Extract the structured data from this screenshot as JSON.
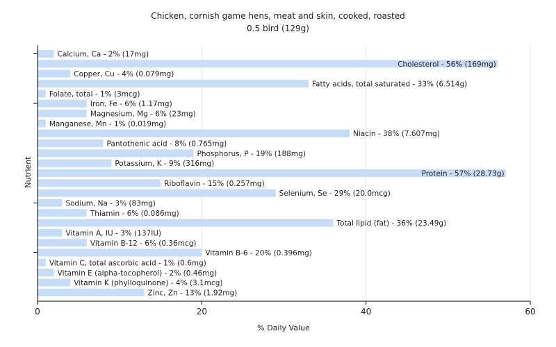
{
  "chart_data": {
    "type": "bar",
    "orientation": "horizontal",
    "title": "Chicken, cornish game hens, meat and skin, cooked, roasted",
    "subtitle": "0.5 bird (129g)",
    "xlabel": "% Daily Value",
    "ylabel": "Nutrient",
    "xlim": [
      0,
      60
    ],
    "xticks": [
      0,
      20,
      40,
      60
    ],
    "grid": true,
    "bar_color": "#c7dcf6",
    "series": [
      {
        "categories": [
          "Calcium, Ca",
          "Cholesterol",
          "Copper, Cu",
          "Fatty acids, total saturated",
          "Folate, total",
          "Iron, Fe",
          "Magnesium, Mg",
          "Manganese, Mn",
          "Niacin",
          "Pantothenic acid",
          "Phosphorus, P",
          "Potassium, K",
          "Protein",
          "Riboflavin",
          "Selenium, Se",
          "Sodium, Na",
          "Thiamin",
          "Total lipid (fat)",
          "Vitamin A, IU",
          "Vitamin B-12",
          "Vitamin B-6",
          "Vitamin C, total ascorbic acid",
          "Vitamin E (alpha-tocopherol)",
          "Vitamin K (phylloquinone)",
          "Zinc, Zn"
        ],
        "values": [
          2,
          56,
          4,
          33,
          1,
          6,
          6,
          1,
          38,
          8,
          19,
          9,
          57,
          15,
          29,
          3,
          6,
          36,
          3,
          6,
          20,
          1,
          2,
          4,
          13
        ],
        "labels": [
          "Calcium, Ca - 2% (17mg)",
          "Cholesterol - 56% (169mg)",
          "Copper, Cu - 4% (0.079mg)",
          "Fatty acids, total saturated - 33% (6.514g)",
          "Folate, total - 1% (3mcg)",
          "Iron, Fe - 6% (1.17mg)",
          "Magnesium, Mg - 6% (23mg)",
          "Manganese, Mn - 1% (0.019mg)",
          "Niacin - 38% (7.607mg)",
          "Pantothenic acid - 8% (0.765mg)",
          "Phosphorus, P - 19% (188mg)",
          "Potassium, K - 9% (316mg)",
          "Protein - 57% (28.73g)",
          "Riboflavin - 15% (0.257mg)",
          "Selenium, Se - 29% (20.0mcg)",
          "Sodium, Na - 3% (83mg)",
          "Thiamin - 6% (0.086mg)",
          "Total lipid (fat) - 36% (23.49g)",
          "Vitamin A, IU - 3% (137IU)",
          "Vitamin B-12 - 6% (0.36mcg)",
          "Vitamin B-6 - 20% (0.396mg)",
          "Vitamin C, total ascorbic acid - 1% (0.6mg)",
          "Vitamin E (alpha-tocopherol) - 2% (0.46mg)",
          "Vitamin K (phylloquinone) - 4% (3.1mcg)",
          "Zinc, Zn - 13% (1.92mg)"
        ]
      }
    ]
  }
}
